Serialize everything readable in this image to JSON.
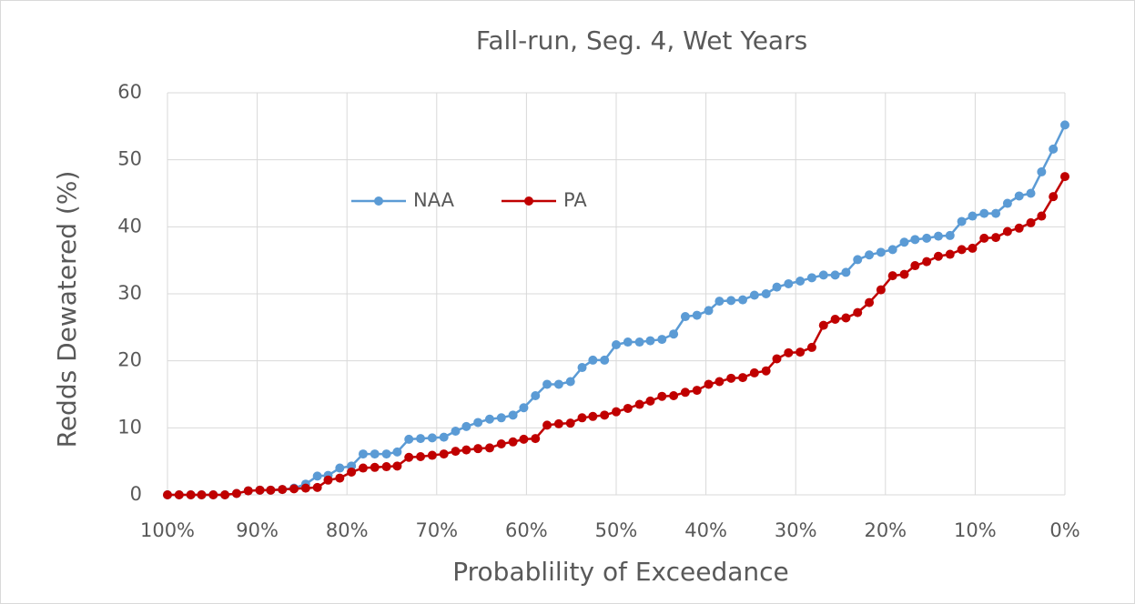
{
  "chart_data": {
    "type": "line",
    "title": "Fall-run, Seg. 4, Wet Years",
    "x_label": "Probablility of Exceedance",
    "y_label": "Redds Dewatered (%)",
    "x": [
      100,
      98.7,
      97.4,
      96.2,
      94.9,
      93.6,
      92.3,
      91.0,
      89.7,
      88.5,
      87.2,
      85.9,
      84.6,
      83.3,
      82.1,
      80.8,
      79.5,
      78.2,
      76.9,
      75.6,
      74.4,
      73.1,
      71.8,
      70.5,
      69.2,
      67.9,
      66.7,
      65.4,
      64.1,
      62.8,
      61.5,
      60.3,
      59.0,
      57.7,
      56.4,
      55.1,
      53.8,
      52.6,
      51.3,
      50.0,
      48.7,
      47.4,
      46.2,
      44.9,
      43.6,
      42.3,
      41.0,
      39.7,
      38.5,
      37.2,
      35.9,
      34.6,
      33.3,
      32.1,
      30.8,
      29.5,
      28.2,
      26.9,
      25.6,
      24.4,
      23.1,
      21.8,
      20.5,
      19.2,
      17.9,
      16.7,
      15.4,
      14.1,
      12.8,
      11.5,
      10.3,
      9.0,
      7.7,
      6.4,
      5.1,
      3.8,
      2.6,
      1.3,
      0
    ],
    "series": [
      {
        "name": "NAA",
        "color": "#5b9bd5",
        "values": [
          0,
          0,
          0,
          0,
          0,
          0,
          0.2,
          0.6,
          0.7,
          0.7,
          0.8,
          1.0,
          1.6,
          2.8,
          2.9,
          4.0,
          4.3,
          6.1,
          6.1,
          6.1,
          6.4,
          8.3,
          8.4,
          8.5,
          8.6,
          9.5,
          10.2,
          10.8,
          11.3,
          11.5,
          11.9,
          13.0,
          14.8,
          16.5,
          16.5,
          16.9,
          19.0,
          20.1,
          20.1,
          22.4,
          22.8,
          22.8,
          23.0,
          23.2,
          24.0,
          26.6,
          26.8,
          27.5,
          28.9,
          29.0,
          29.1,
          29.8,
          30.0,
          31.0,
          31.5,
          31.9,
          32.4,
          32.8,
          32.8,
          33.2,
          35.1,
          35.8,
          36.2,
          36.6,
          37.7,
          38.1,
          38.3,
          38.6,
          38.7,
          40.8,
          41.6,
          42.0,
          42.0,
          43.5,
          44.6,
          45.0,
          48.2,
          51.6,
          55.2
        ]
      },
      {
        "name": "PA",
        "color": "#c00000",
        "values": [
          0,
          0,
          0,
          0,
          0,
          0,
          0.2,
          0.6,
          0.7,
          0.7,
          0.8,
          0.9,
          1.0,
          1.1,
          2.2,
          2.5,
          3.4,
          4.0,
          4.1,
          4.2,
          4.3,
          5.6,
          5.7,
          5.9,
          6.1,
          6.5,
          6.7,
          6.9,
          7.0,
          7.6,
          7.9,
          8.3,
          8.4,
          10.4,
          10.6,
          10.7,
          11.5,
          11.7,
          11.9,
          12.4,
          12.9,
          13.5,
          14.0,
          14.7,
          14.8,
          15.3,
          15.6,
          16.5,
          16.9,
          17.4,
          17.5,
          18.2,
          18.5,
          20.3,
          21.2,
          21.3,
          22.0,
          25.3,
          26.2,
          26.4,
          27.2,
          28.7,
          30.6,
          32.7,
          32.9,
          34.2,
          34.8,
          35.6,
          35.9,
          36.6,
          36.8,
          38.3,
          38.4,
          39.3,
          39.8,
          40.6,
          41.6,
          44.5,
          47.5
        ]
      }
    ],
    "xlim": [
      100,
      0
    ],
    "xticks": [
      {
        "value": 100,
        "label": "100%"
      },
      {
        "value": 90,
        "label": "90%"
      },
      {
        "value": 80,
        "label": "80%"
      },
      {
        "value": 70,
        "label": "70%"
      },
      {
        "value": 60,
        "label": "60%"
      },
      {
        "value": 50,
        "label": "50%"
      },
      {
        "value": 40,
        "label": "40%"
      },
      {
        "value": 30,
        "label": "30%"
      },
      {
        "value": 20,
        "label": "20%"
      },
      {
        "value": 10,
        "label": "10%"
      },
      {
        "value": 0,
        "label": "0%"
      }
    ],
    "ylim": [
      0,
      60
    ],
    "yticks": [
      0,
      10,
      20,
      30,
      40,
      50,
      60
    ],
    "grid": true,
    "legend": "upper left"
  }
}
